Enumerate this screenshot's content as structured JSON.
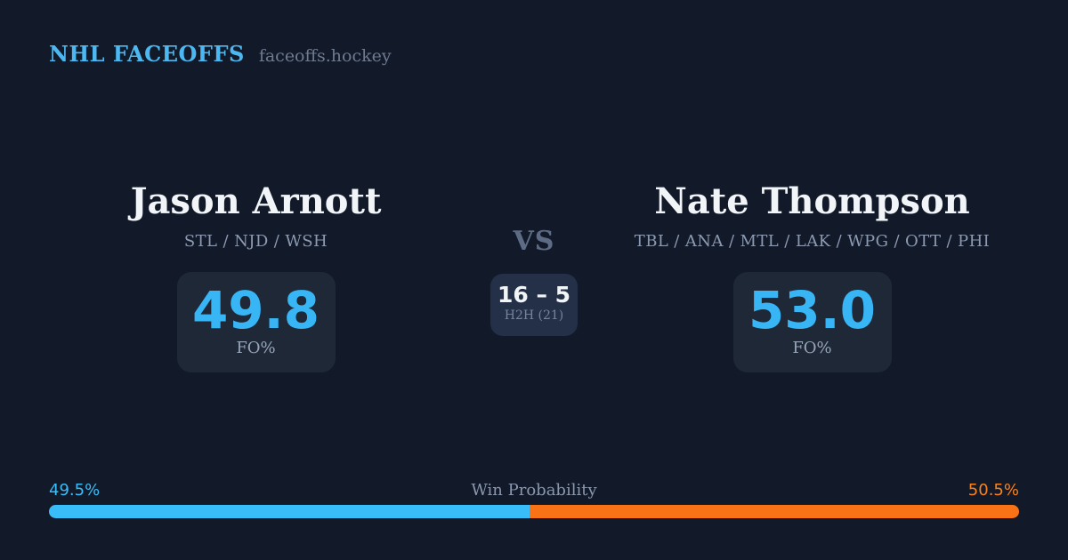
{
  "header": {
    "title": "NHL FACEOFFS",
    "site": "faceoffs.hockey"
  },
  "matchup": {
    "vs_label": "VS",
    "h2h": {
      "score": "16 – 5",
      "label": "H2H (21)"
    },
    "players": [
      {
        "name": "Jason Arnott",
        "teams": "STL / NJD / WSH",
        "fo_pct": "49.8",
        "stat_label": "FO%"
      },
      {
        "name": "Nate Thompson",
        "teams": "TBL / ANA / MTL / LAK / WPG / OTT / PHI",
        "fo_pct": "53.0",
        "stat_label": "FO%"
      }
    ]
  },
  "win_probability": {
    "title": "Win Probability",
    "left_label": "49.5%",
    "right_label": "50.5%",
    "left_value": 49.5,
    "right_value": 50.5
  },
  "colors": {
    "background": "#121a2a",
    "panel": "#1e2837",
    "h2h_panel": "#243047",
    "accent_blue": "#38bdf8",
    "accent_orange": "#f97316",
    "brand_blue": "#4cb8f1",
    "text_white": "#f2f5f8",
    "text_muted": "#8c9ab1"
  }
}
